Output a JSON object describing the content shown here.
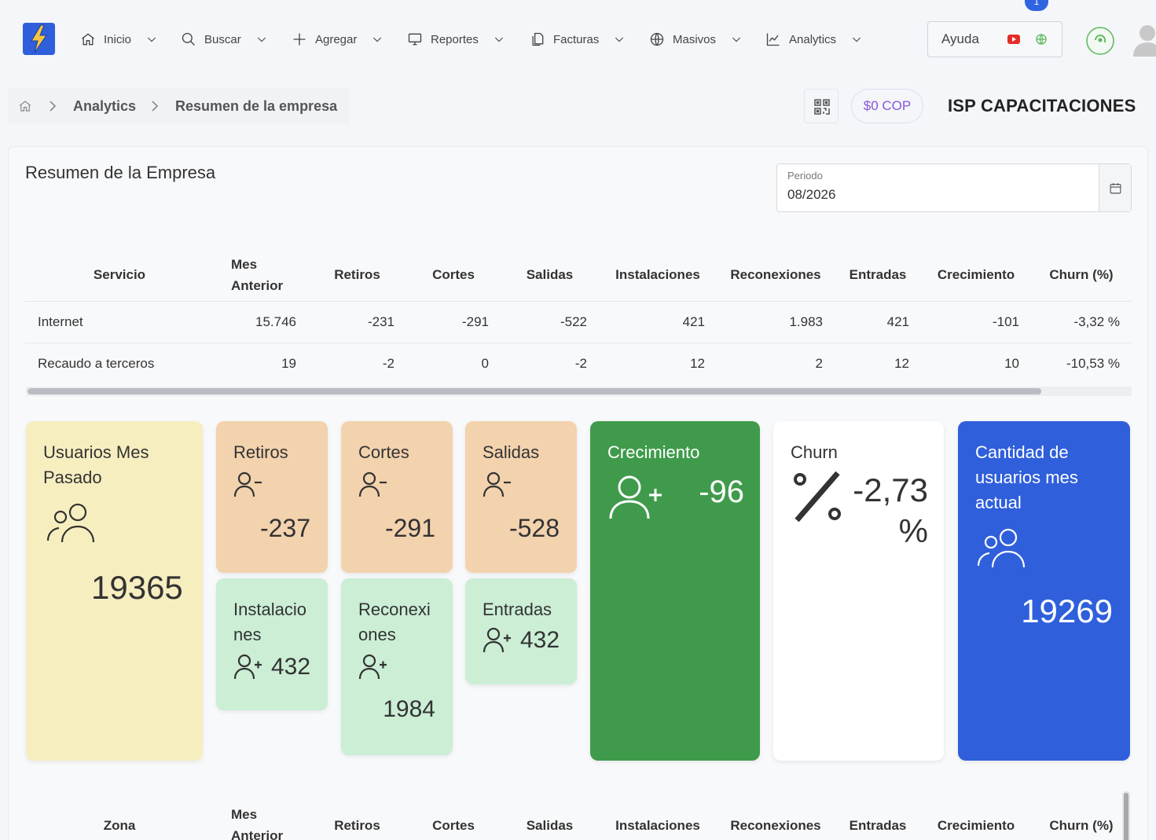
{
  "nav": {
    "items": [
      {
        "label": "Inicio",
        "icon": "home-icon"
      },
      {
        "label": "Buscar",
        "icon": "search-icon"
      },
      {
        "label": "Agregar",
        "icon": "plus-icon"
      },
      {
        "label": "Reportes",
        "icon": "monitor-icon"
      },
      {
        "label": "Facturas",
        "icon": "documents-icon"
      },
      {
        "label": "Masivos",
        "icon": "globe-icon"
      },
      {
        "label": "Analytics",
        "icon": "chart-icon"
      }
    ],
    "help_label": "Ayuda",
    "notification_count": "1"
  },
  "breadcrumb": {
    "section": "Analytics",
    "current": "Resumen de la empresa"
  },
  "header": {
    "balance": "$0 COP",
    "company": "ISP CAPACITACIONES"
  },
  "card": {
    "title": "Resumen de la Empresa",
    "period_label": "Periodo",
    "period_value": "08/2026"
  },
  "service_table": {
    "headers": [
      "Servicio",
      "Mes Anterior",
      "Retiros",
      "Cortes",
      "Salidas",
      "Instalaciones",
      "Reconexiones",
      "Entradas",
      "Crecimiento",
      "Churn (%)"
    ],
    "rows": [
      [
        "Internet",
        "15.746",
        "-231",
        "-291",
        "-522",
        "421",
        "1.983",
        "421",
        "-101",
        "-3,32 %"
      ],
      [
        "Recaudo a terceros",
        "19",
        "-2",
        "0",
        "-2",
        "12",
        "2",
        "12",
        "10",
        "-10,53 %"
      ]
    ]
  },
  "tiles": {
    "usuarios_mes_pasado": {
      "label": "Usuarios Mes Pasado",
      "value": "19365"
    },
    "retiros": {
      "label": "Retiros",
      "value": "-237"
    },
    "cortes": {
      "label": "Cortes",
      "value": "-291"
    },
    "salidas": {
      "label": "Salidas",
      "value": "-528"
    },
    "instalaciones": {
      "label": "Instalaciones",
      "value": "432"
    },
    "reconexiones": {
      "label": "Reconexiones",
      "value": "1984"
    },
    "entradas": {
      "label": "Entradas",
      "value": "432"
    },
    "crecimiento": {
      "label": "Crecimiento",
      "value": "-96",
      "color": "#3f9b4b"
    },
    "churn": {
      "label": "Churn",
      "value": "-2,73",
      "unit": "%"
    },
    "cantidad_actual": {
      "label": "Cantidad de usuarios mes actual",
      "value": "19269",
      "color": "#2f5fdb"
    }
  },
  "zone_table": {
    "headers": [
      "Zona",
      "Mes Anterior",
      "Retiros",
      "Cortes",
      "Salidas",
      "Instalaciones",
      "Reconexiones",
      "Entradas",
      "Crecimiento",
      "Churn (%)"
    ]
  }
}
